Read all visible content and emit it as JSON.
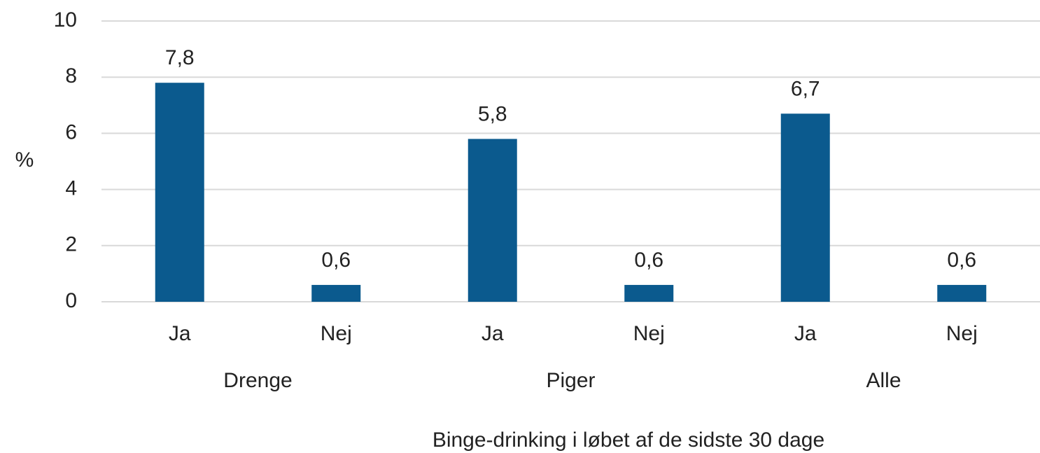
{
  "chart_data": {
    "type": "bar",
    "groups": [
      {
        "name": "Drenge",
        "categories": [
          "Ja",
          "Nej"
        ],
        "values": [
          7.8,
          0.6
        ],
        "value_labels": [
          "7,8",
          "0,6"
        ]
      },
      {
        "name": "Piger",
        "categories": [
          "Ja",
          "Nej"
        ],
        "values": [
          5.8,
          0.6
        ],
        "value_labels": [
          "5,8",
          "0,6"
        ]
      },
      {
        "name": "Alle",
        "categories": [
          "Ja",
          "Nej"
        ],
        "values": [
          6.7,
          0.6
        ],
        "value_labels": [
          "6,7",
          "0,6"
        ]
      }
    ],
    "color": "#0b5a8e",
    "y_label": "%",
    "x_label": "Binge-drinking i løbet af de sidste 30 dage",
    "ylim": [
      0,
      10
    ],
    "yticks": [
      0,
      2,
      4,
      6,
      8,
      10
    ],
    "grid": true
  }
}
